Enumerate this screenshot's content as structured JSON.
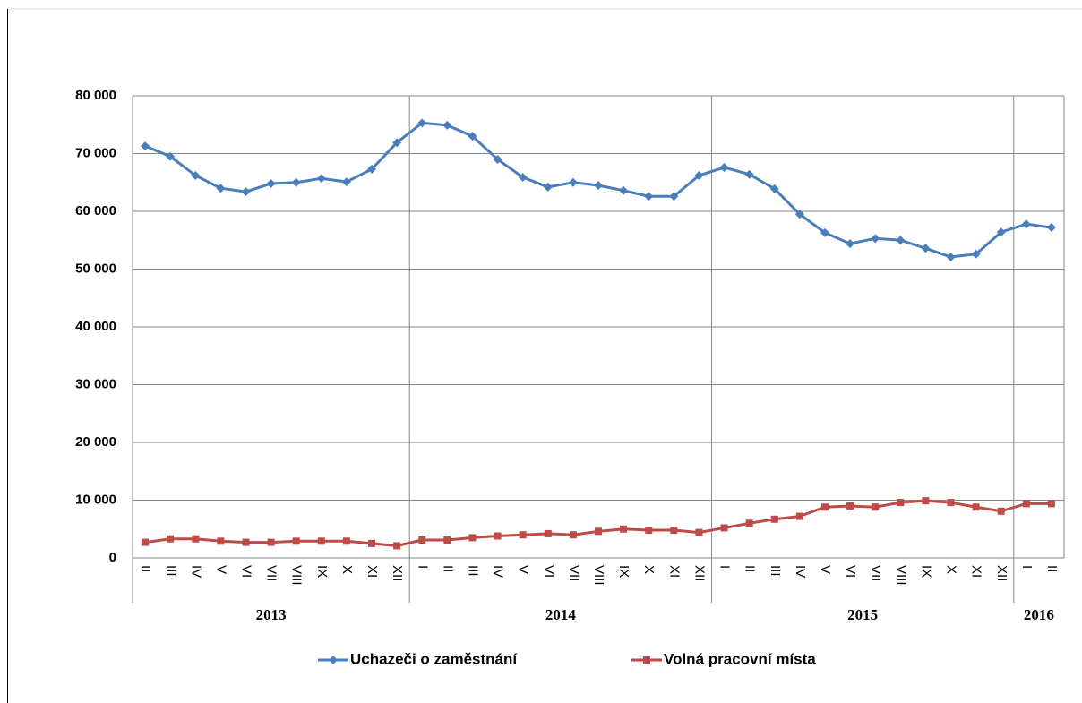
{
  "chart_data": {
    "type": "line",
    "categories": [
      "II",
      "III",
      "IV",
      "V",
      "VI",
      "VII",
      "VIII",
      "IX",
      "X",
      "XI",
      "XII",
      "I",
      "II",
      "III",
      "IV",
      "V",
      "VI",
      "VII",
      "VIII",
      "IX",
      "X",
      "XI",
      "XII",
      "I",
      "II",
      "III",
      "IV",
      "V",
      "VI",
      "VII",
      "VIII",
      "IX",
      "X",
      "XI",
      "XII",
      "I",
      "II"
    ],
    "groups": [
      {
        "label": "2013",
        "size": 11
      },
      {
        "label": "2014",
        "size": 12
      },
      {
        "label": "2015",
        "size": 12
      },
      {
        "label": "2016",
        "size": 2
      }
    ],
    "series": [
      {
        "name": "Uchazeči o zaměstnání",
        "color": "#4a7ebb",
        "marker": "diamond",
        "values": [
          71300,
          69500,
          66200,
          64000,
          63400,
          64800,
          65000,
          65700,
          65100,
          67300,
          71900,
          75300,
          74900,
          73000,
          69000,
          65900,
          64200,
          65000,
          64500,
          63600,
          62600,
          62600,
          66200,
          67600,
          66400,
          63900,
          59500,
          56300,
          54400,
          55300,
          55000,
          53600,
          52100,
          52600,
          56400,
          57800,
          57200
        ]
      },
      {
        "name": "Volná pracovní místa",
        "color": "#be4b48",
        "marker": "square",
        "values": [
          2700,
          3300,
          3300,
          2900,
          2700,
          2700,
          2900,
          2900,
          2900,
          2500,
          2100,
          3100,
          3100,
          3500,
          3800,
          4000,
          4200,
          4000,
          4600,
          5000,
          4800,
          4800,
          4400,
          5200,
          6000,
          6700,
          7200,
          8800,
          9000,
          8800,
          9600,
          9900,
          9600,
          8800,
          8100,
          9400,
          9400
        ]
      }
    ],
    "ylim": [
      0,
      80000
    ],
    "yticks": [
      0,
      {
        "value": 10000,
        "label": "10 000"
      },
      {
        "value": 20000,
        "label": "20 000"
      },
      {
        "value": 30000,
        "label": "30 000"
      },
      {
        "value": 40000,
        "label": "40 000"
      },
      {
        "value": 50000,
        "label": "50 000"
      },
      {
        "value": 60000,
        "label": "60 000"
      },
      {
        "value": 70000,
        "label": "70 000"
      },
      {
        "value": 80000,
        "label": "80 000"
      }
    ],
    "grid": true
  }
}
